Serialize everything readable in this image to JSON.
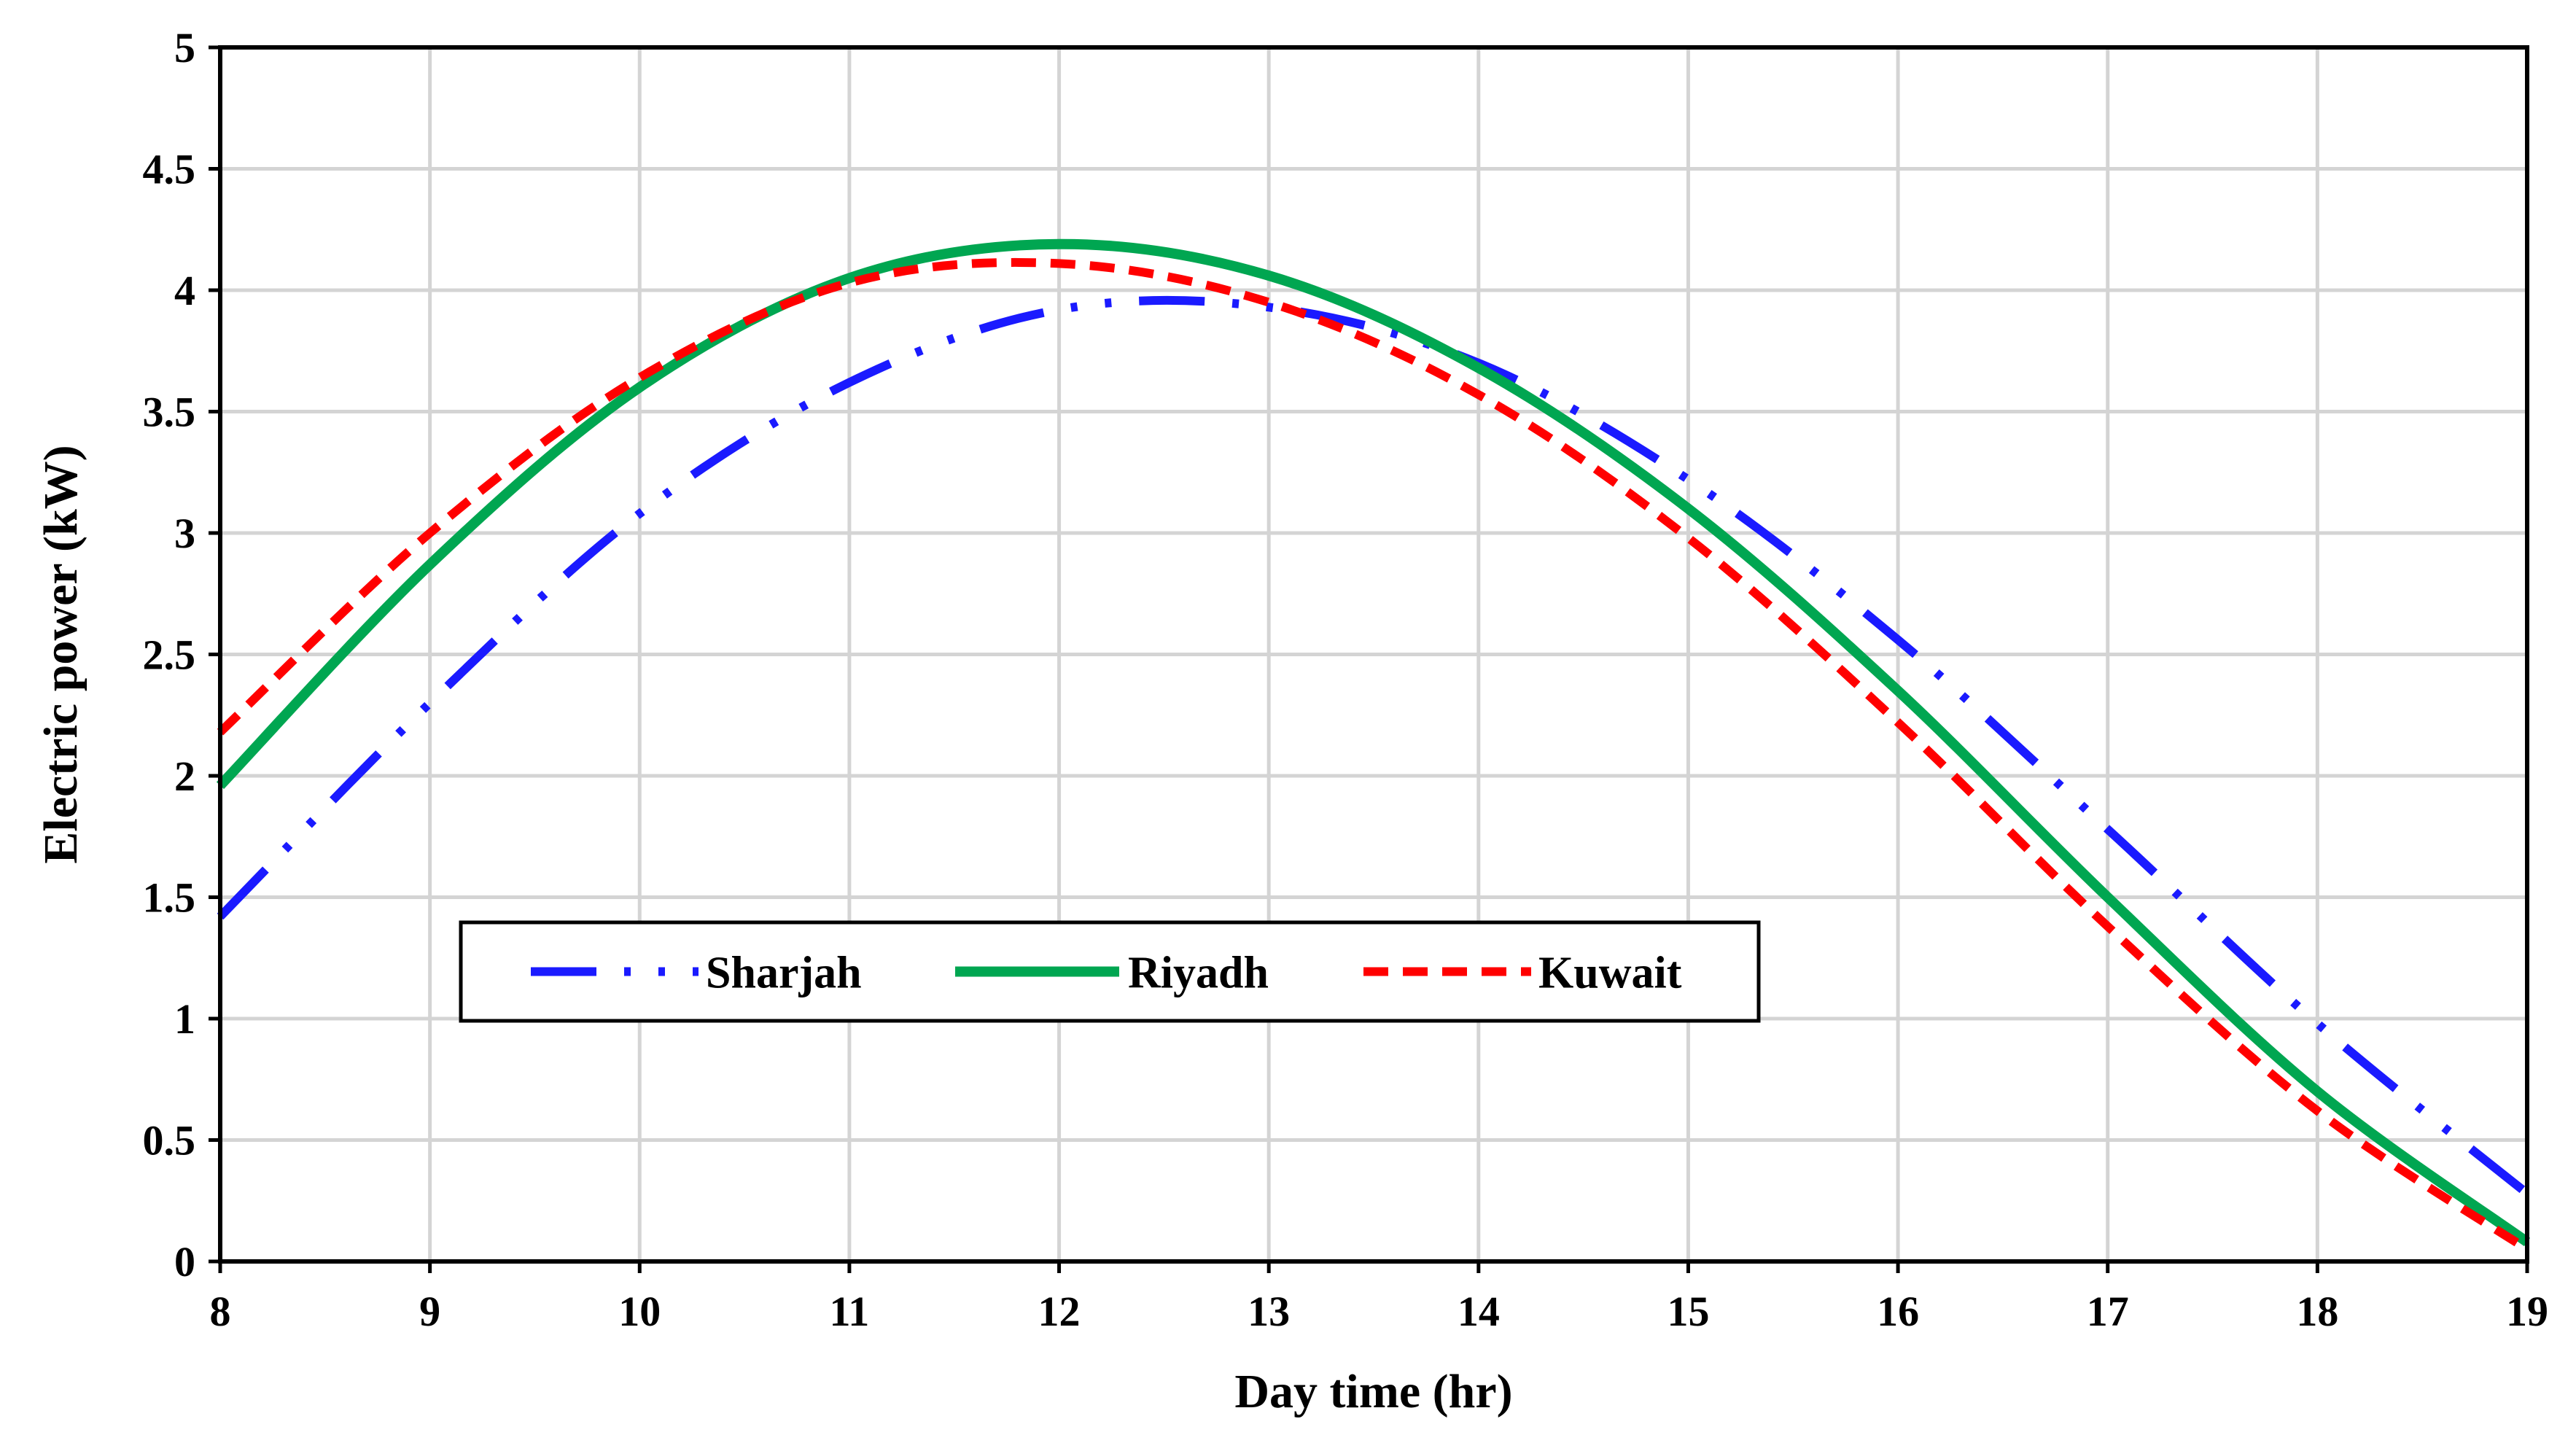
{
  "chart_data": {
    "type": "line",
    "title": "",
    "xlabel": "Day time (hr)",
    "ylabel": "Electric power (kW)",
    "xlim": [
      8,
      19
    ],
    "ylim": [
      0,
      5
    ],
    "xticks": [
      "8",
      "9",
      "10",
      "11",
      "12",
      "13",
      "14",
      "15",
      "16",
      "17",
      "18",
      "19"
    ],
    "yticks": [
      "0",
      "0.5",
      "1",
      "1.5",
      "2",
      "2.5",
      "3",
      "3.5",
      "4",
      "4.5",
      "5"
    ],
    "grid": true,
    "legend_position": "lower-left, inside plot",
    "series": [
      {
        "name": "Sharjah",
        "color": "#1a1aff",
        "style": "dash-dot-dot",
        "x": [
          8,
          9,
          10,
          11,
          12,
          13,
          14,
          15,
          16,
          17,
          18,
          19
        ],
        "values": [
          1.42,
          2.3,
          3.08,
          3.62,
          3.92,
          3.93,
          3.7,
          3.22,
          2.56,
          1.78,
          0.98,
          0.28
        ]
      },
      {
        "name": "Riyadh",
        "color": "#00a651",
        "style": "solid",
        "x": [
          8,
          9,
          10,
          11,
          12,
          13,
          14,
          15,
          16,
          17,
          18,
          19
        ],
        "values": [
          1.96,
          2.87,
          3.6,
          4.05,
          4.19,
          4.06,
          3.68,
          3.1,
          2.35,
          1.5,
          0.7,
          0.08
        ]
      },
      {
        "name": "Kuwait",
        "color": "#ff0000",
        "style": "dashed",
        "x": [
          8,
          9,
          10,
          11,
          12,
          13,
          14,
          15,
          16,
          17,
          18,
          19
        ],
        "values": [
          2.18,
          3.0,
          3.64,
          4.03,
          4.11,
          3.95,
          3.57,
          2.98,
          2.22,
          1.38,
          0.62,
          0.05
        ]
      }
    ]
  }
}
